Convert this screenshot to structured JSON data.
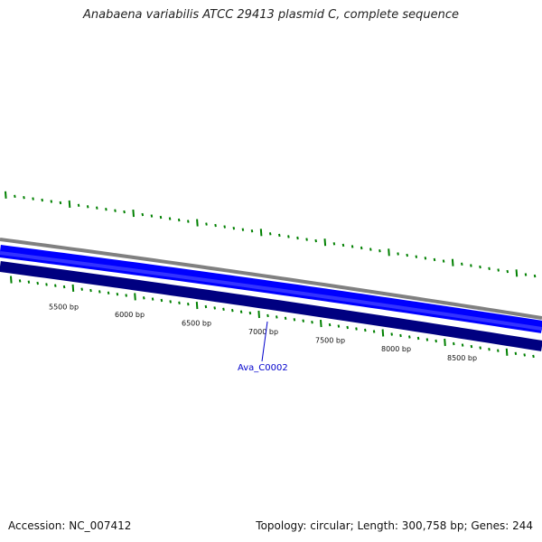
{
  "title": "Anabaena variabilis ATCC 29413 plasmid C, complete sequence",
  "footer": {
    "accession": "Accession: NC_007412",
    "summary": "Topology: circular; Length: 300,758 bp; Genes: 244"
  },
  "ruler": {
    "labels": [
      "5500 bp",
      "6000 bp",
      "6500 bp",
      "7000 bp",
      "7500 bp",
      "8000 bp",
      "8500 bp"
    ]
  },
  "gene": {
    "name": "Ava_C0002"
  },
  "colors": {
    "backbone": "#808080",
    "forward_track": "#0000ff",
    "reverse_track": "#000080",
    "tick": "#008000",
    "gene_label": "#0000cc"
  }
}
